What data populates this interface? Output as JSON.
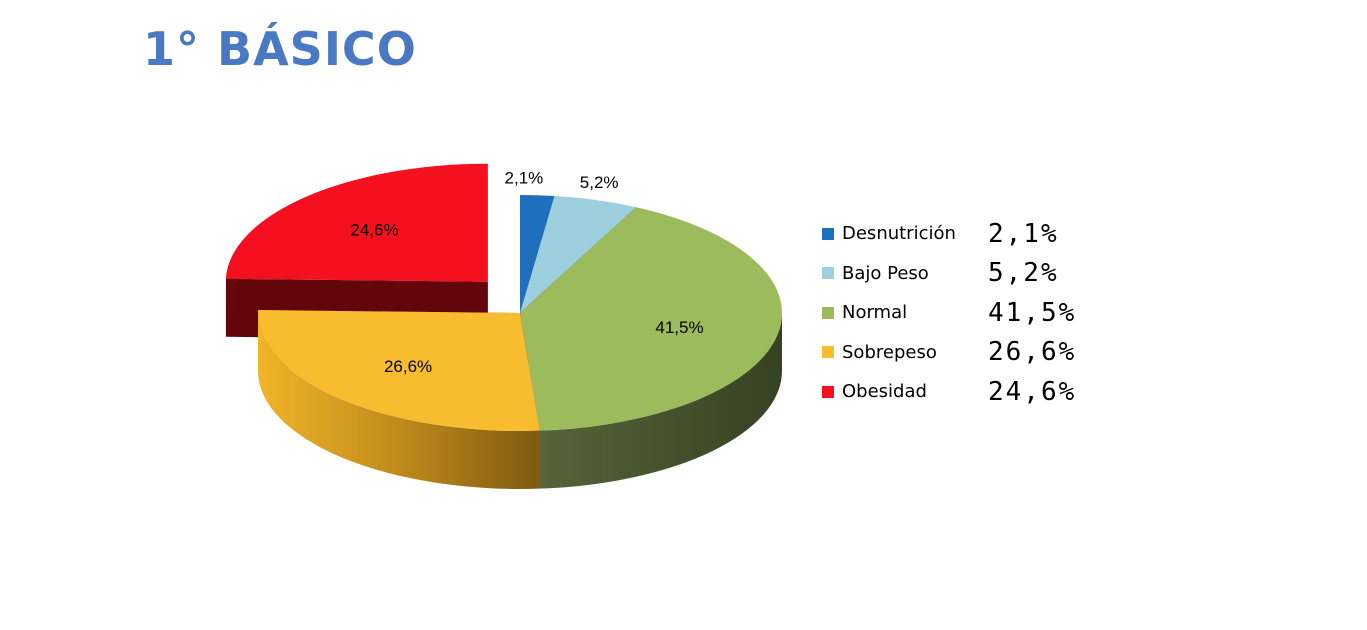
{
  "chart_data": {
    "type": "pie",
    "title": "1° BÁSICO",
    "categories": [
      "Desnutrición",
      "Bajo Peso",
      "Normal",
      "Sobrepeso",
      "Obesidad"
    ],
    "values": [
      2.1,
      5.2,
      41.5,
      26.6,
      24.6
    ],
    "data_labels": [
      "2,1%",
      "5,2%",
      "41,5%",
      "26,6%",
      "24,6%"
    ],
    "legend_values": [
      "2,1%",
      "5,2%",
      "41,5%",
      "26,6%",
      "24,6%"
    ],
    "colors": [
      "#1f6fbf",
      "#9ecfdf",
      "#9bbb5d",
      "#f8bd2f",
      "#f4101e"
    ],
    "exploded": [
      "Obesidad"
    ],
    "legend_position": "right",
    "style": "3d"
  }
}
